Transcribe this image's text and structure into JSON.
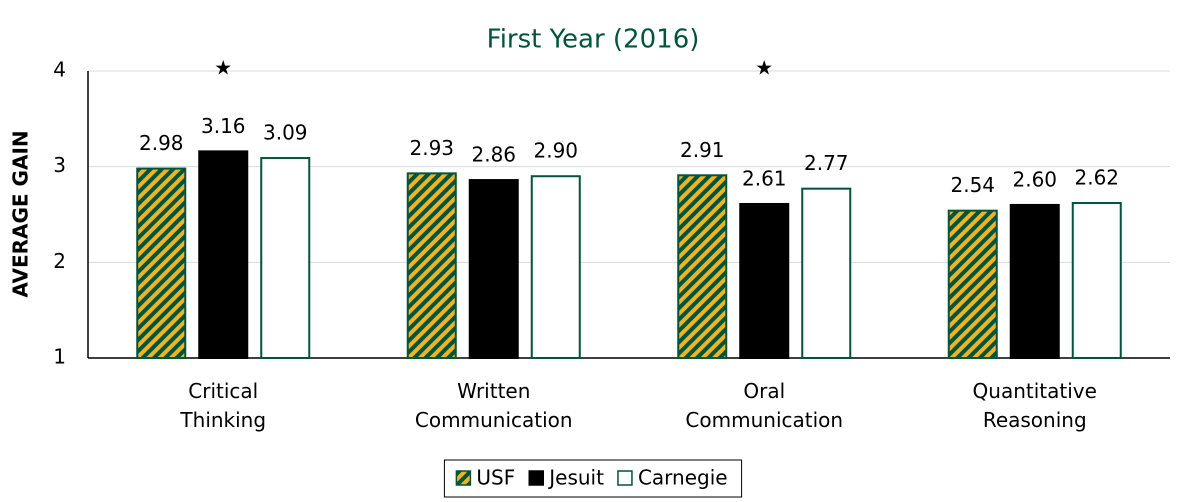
{
  "chart_data": {
    "type": "bar",
    "title": "First Year (2016)",
    "y_label": "AVERAGE GAIN",
    "categories": [
      "Critical Thinking",
      "Written Communication",
      "Oral Communication",
      "Quantitative Reasoning"
    ],
    "series": [
      {
        "name": "USF",
        "color": "#f0b323",
        "hatch": "#00543c",
        "edge": "#00543c",
        "values": [
          2.98,
          2.93,
          2.91,
          2.54
        ],
        "value_labels": [
          "2.98",
          "2.93",
          "2.91",
          "2.54"
        ]
      },
      {
        "name": "Jesuit",
        "color": "#000000",
        "edge": "#000000",
        "values": [
          3.16,
          2.86,
          2.61,
          2.6
        ],
        "value_labels": [
          "3.16",
          "2.86",
          "2.61",
          "2.60"
        ]
      },
      {
        "name": "Carnegie",
        "color": "#ffffff",
        "edge": "#00543c",
        "values": [
          3.09,
          2.9,
          2.77,
          2.62
        ],
        "value_labels": [
          "3.09",
          "2.90",
          "2.77",
          "2.62"
        ]
      }
    ],
    "annotations": [
      {
        "text": "★",
        "x": "Critical Thinking"
      },
      {
        "text": "★",
        "x": "Oral Communication"
      }
    ],
    "ylim": [
      1,
      4
    ],
    "yticks": [
      1,
      2,
      3,
      4
    ],
    "grid": true,
    "legend": "bottom"
  }
}
